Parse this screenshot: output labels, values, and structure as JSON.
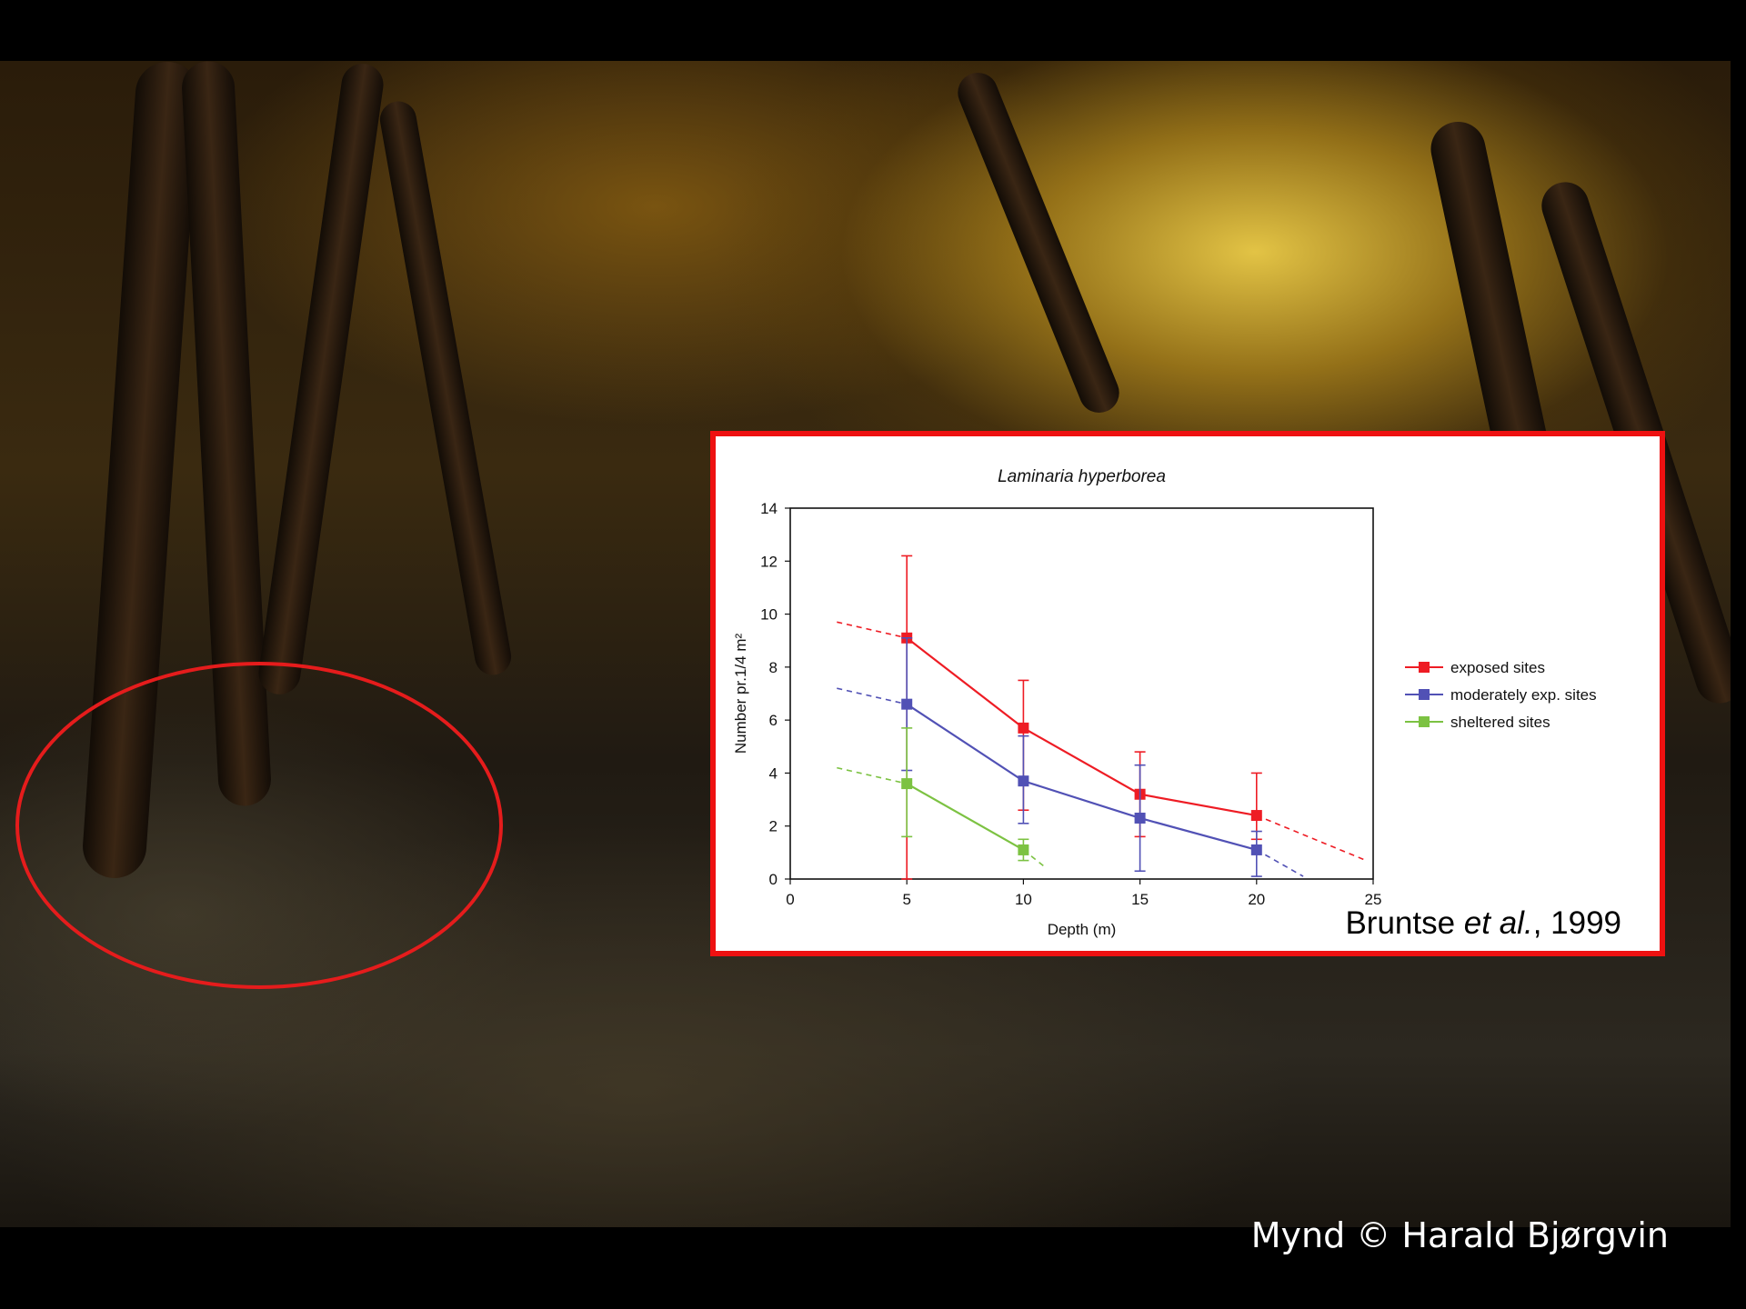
{
  "slide": {
    "citation_author": "Bruntse",
    "citation_etal": "et al.",
    "citation_year": ", 1999",
    "photo_credit": "Mynd © Harald Bjørgvin"
  },
  "chart_data": {
    "type": "line",
    "title": "Laminaria hyperborea",
    "xlabel": "Depth (m)",
    "ylabel": "Number pr.1/4 m²",
    "xlim": [
      0,
      25
    ],
    "ylim": [
      0,
      14
    ],
    "x_ticks": [
      "0",
      "5",
      "10",
      "15",
      "20",
      "25"
    ],
    "y_ticks": [
      "0",
      "2",
      "4",
      "6",
      "8",
      "10",
      "12",
      "14"
    ],
    "grid": false,
    "legend_position": "right",
    "series": [
      {
        "name": "exposed sites",
        "color": "#ee1c24",
        "x": [
          5,
          10,
          15,
          20
        ],
        "y": [
          9.1,
          5.7,
          3.2,
          2.4
        ],
        "err_low": [
          0,
          2.6,
          1.6,
          1.5
        ],
        "err_high": [
          12.2,
          7.5,
          4.8,
          4.0
        ],
        "trend_start": [
          2,
          9.7
        ],
        "trend_end": [
          24.7,
          0.7
        ]
      },
      {
        "name": "moderately exp. sites",
        "color": "#5151b5",
        "x": [
          5,
          10,
          15,
          20
        ],
        "y": [
          6.6,
          3.7,
          2.3,
          1.1
        ],
        "err_low": [
          4.1,
          2.1,
          0.3,
          0.1
        ],
        "err_high": [
          9.1,
          5.4,
          4.3,
          1.8
        ],
        "trend_start": [
          2,
          7.2
        ],
        "trend_end": [
          22,
          0.1
        ]
      },
      {
        "name": "sheltered sites",
        "color": "#7cc242",
        "x": [
          5,
          10
        ],
        "y": [
          3.6,
          1.1
        ],
        "err_low": [
          1.6,
          0.7
        ],
        "err_high": [
          5.7,
          1.5
        ],
        "trend_start": [
          2,
          4.2
        ],
        "trend_end": [
          11,
          0.4
        ]
      }
    ]
  }
}
